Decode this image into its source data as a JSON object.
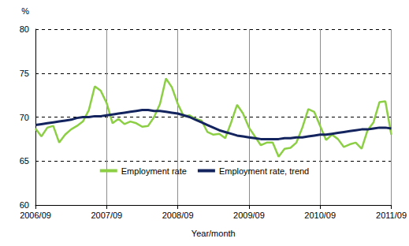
{
  "chart_data": {
    "type": "line",
    "x_label": "Year/month",
    "y_label": "%",
    "categories": [
      "2006/09",
      null,
      null,
      null,
      null,
      null,
      null,
      null,
      null,
      null,
      null,
      null,
      "2007/09",
      null,
      null,
      null,
      null,
      null,
      null,
      null,
      null,
      null,
      null,
      null,
      "2008/09",
      null,
      null,
      null,
      null,
      null,
      null,
      null,
      null,
      null,
      null,
      null,
      "2009/09",
      null,
      null,
      null,
      null,
      null,
      null,
      null,
      null,
      null,
      null,
      null,
      "2010/09",
      null,
      null,
      null,
      null,
      null,
      null,
      null,
      null,
      null,
      null,
      null,
      "2011/09"
    ],
    "series": [
      {
        "name": "Employment rate",
        "color": "#8ccf45",
        "values": [
          68.7,
          67.8,
          68.8,
          69.0,
          67.1,
          68.0,
          68.6,
          69.0,
          69.5,
          70.8,
          73.5,
          73.0,
          71.6,
          69.3,
          69.8,
          69.2,
          69.5,
          69.3,
          68.9,
          69.0,
          70.0,
          71.5,
          74.4,
          73.4,
          71.5,
          70.1,
          70.2,
          69.8,
          69.6,
          68.3,
          68.0,
          68.1,
          67.6,
          69.4,
          71.4,
          70.4,
          68.8,
          67.8,
          66.8,
          67.1,
          67.1,
          65.5,
          66.4,
          66.5,
          67.1,
          68.8,
          70.9,
          70.6,
          69.0,
          67.4,
          68.0,
          67.5,
          66.6,
          66.9,
          67.1,
          66.4,
          68.5,
          69.4,
          71.7,
          71.8,
          68.0
        ]
      },
      {
        "name": "Employment rate, trend",
        "color": "#13245e",
        "values": [
          69.1,
          69.2,
          69.3,
          69.4,
          69.5,
          69.6,
          69.7,
          69.9,
          70.0,
          70.0,
          70.1,
          70.1,
          70.2,
          70.3,
          70.4,
          70.5,
          70.6,
          70.7,
          70.8,
          70.8,
          70.7,
          70.7,
          70.6,
          70.5,
          70.4,
          70.2,
          70.0,
          69.7,
          69.4,
          69.1,
          68.8,
          68.5,
          68.3,
          68.1,
          67.9,
          67.8,
          67.7,
          67.6,
          67.5,
          67.5,
          67.5,
          67.5,
          67.6,
          67.6,
          67.7,
          67.7,
          67.8,
          67.9,
          68.0,
          68.0,
          68.1,
          68.2,
          68.3,
          68.4,
          68.5,
          68.6,
          68.6,
          68.7,
          68.8,
          68.8,
          68.7
        ]
      }
    ],
    "ylim": [
      60,
      80
    ],
    "yticks": [
      60,
      65,
      70,
      75,
      80
    ],
    "grid": true,
    "legend": "bottom"
  }
}
